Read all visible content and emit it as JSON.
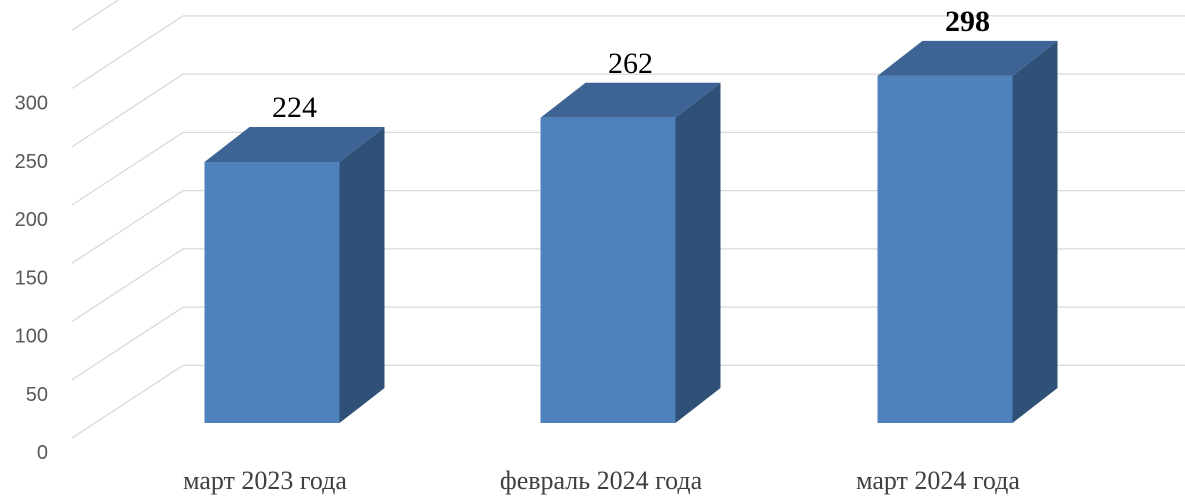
{
  "chart_data": {
    "type": "bar",
    "style": "3d-column",
    "categories": [
      "март 2023 года",
      "февраль 2024 года",
      "март 2024 года"
    ],
    "values": [
      224,
      262,
      298
    ],
    "data_labels": [
      "224",
      "262",
      "298"
    ],
    "bold_labels": [
      false,
      false,
      true
    ],
    "title": "",
    "xlabel": "",
    "ylabel": "",
    "ylim": [
      0,
      350
    ],
    "yticks": [
      0,
      50,
      100,
      150,
      200,
      250,
      300
    ],
    "grid": true,
    "legend": "none",
    "colors": {
      "front": "#4f81bd",
      "top": "#3d6494",
      "side": "#2f5077",
      "grid": "#d9d9d9"
    }
  }
}
